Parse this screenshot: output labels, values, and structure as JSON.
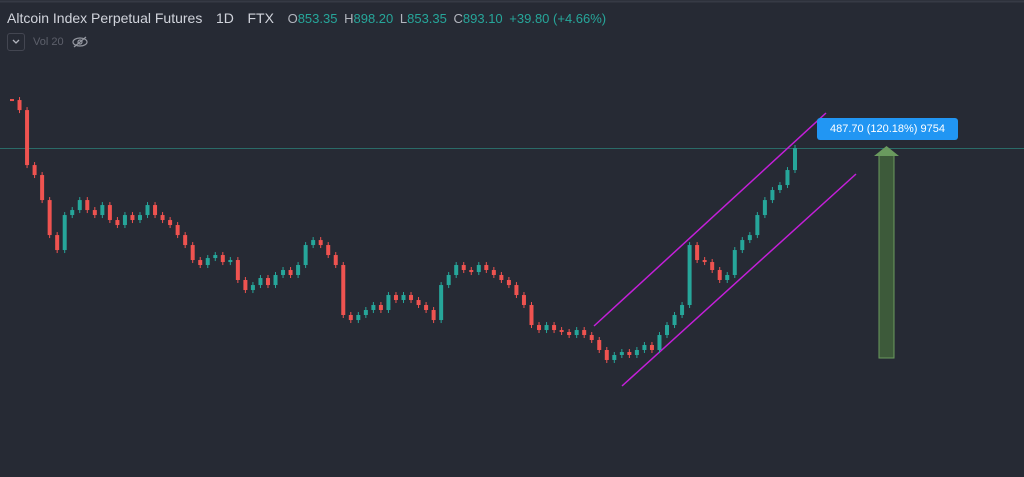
{
  "header": {
    "title": "Altcoin Index Perpetual Futures",
    "interval": "1D",
    "exchange": "FTX",
    "open_key": "O",
    "open": "853.35",
    "high_key": "H",
    "high": "898.20",
    "low_key": "L",
    "low": "853.35",
    "close_key": "C",
    "close": "893.10",
    "change": "+39.80 (+4.66%)",
    "volume_label": "Vol 20"
  },
  "measure_label": "487.70 (120.18%) 9754",
  "chart_data": {
    "type": "candlestick",
    "up_color": "#26a69a",
    "down_color": "#ef5350",
    "ylim": [
      129,
      1237
    ],
    "values": [
      1004.6,
      981.3,
      853.6,
      830.4,
      772.3,
      691.0,
      656.2,
      737.5,
      749.1,
      772.3,
      749.1,
      737.5,
      760.7,
      725.9,
      714.3,
      737.5,
      725.9,
      737.5,
      760.7,
      737.5,
      725.9,
      714.3,
      691.0,
      667.8,
      633.0,
      621.4,
      637.6,
      644.6,
      628.3,
      633.0,
      586.6,
      563.3,
      574.9,
      591.2,
      574.9,
      598.2,
      609.8,
      598.2,
      621.4,
      667.8,
      679.4,
      667.8,
      644.6,
      621.4,
      505.3,
      493.6,
      505.3,
      516.9,
      528.5,
      516.9,
      551.7,
      540.1,
      551.7,
      540.1,
      528.5,
      516.9,
      493.6,
      574.9,
      598.2,
      621.4,
      609.8,
      605.1,
      621.4,
      609.8,
      598.2,
      586.6,
      574.9,
      551.7,
      528.5,
      482.0,
      470.4,
      482.0,
      470.4,
      465.8,
      458.8,
      470.4,
      458.8,
      447.2,
      424.0,
      400.8,
      412.4,
      419.3,
      412.4,
      424.0,
      435.6,
      424.0,
      458.8,
      482.0,
      505.3,
      528.5,
      667.8,
      633.0,
      628.3,
      609.8,
      586.6,
      598.2,
      656.2,
      679.4,
      691.0,
      737.5,
      772.3,
      795.6,
      807.2,
      842.0,
      893.1
    ]
  }
}
